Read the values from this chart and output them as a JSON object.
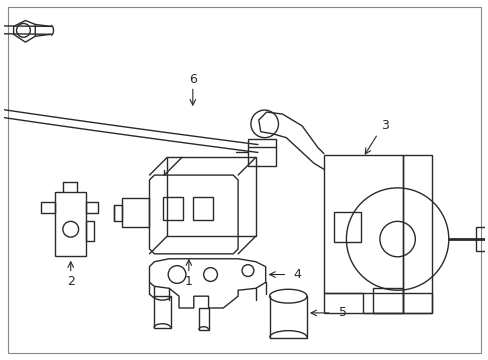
{
  "background_color": "#ffffff",
  "line_color": "#2a2a2a",
  "line_width": 1.0,
  "figsize": [
    4.89,
    3.6
  ],
  "dpi": 100
}
